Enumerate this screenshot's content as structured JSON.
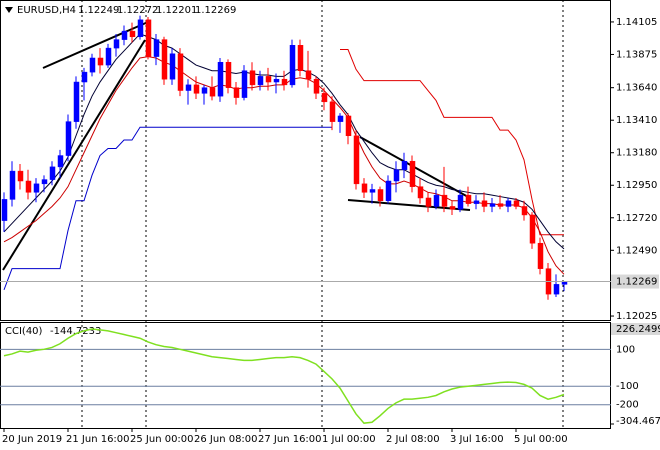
{
  "chart_data": [
    {
      "type": "candlestick",
      "title": "EURUSD,H4",
      "up_color": "#0000ff",
      "down_color": "#ff0000",
      "categories": [
        "20 Jun 2019",
        null,
        null,
        null,
        null,
        null,
        null,
        null,
        "21 Jun 16:00",
        null,
        null,
        null,
        null,
        null,
        null,
        null,
        "25 Jun 00:00",
        null,
        null,
        null,
        null,
        null,
        null,
        null,
        "26 Jun 08:00",
        null,
        null,
        null,
        null,
        null,
        null,
        null,
        "27 Jun 16:00",
        null,
        null,
        null,
        null,
        null,
        null,
        null,
        "1 Jul 00:00",
        null,
        null,
        null,
        null,
        null,
        null,
        null,
        "2 Jul 08:00",
        null,
        null,
        null,
        null,
        null,
        null,
        null,
        "3 Jul 16:00",
        null,
        null,
        null,
        null,
        null,
        null,
        null,
        "5 Jul 00:00",
        null,
        null,
        null,
        null,
        null,
        null
      ],
      "ohlc": [
        [
          1.127,
          1.129,
          1.1262,
          1.1285
        ],
        [
          1.1285,
          1.1312,
          1.128,
          1.1305
        ],
        [
          1.1305,
          1.131,
          1.1292,
          1.1298
        ],
        [
          1.1298,
          1.1306,
          1.1285,
          1.129
        ],
        [
          1.129,
          1.13,
          1.1283,
          1.1296
        ],
        [
          1.1296,
          1.1302,
          1.129,
          1.1299
        ],
        [
          1.1299,
          1.1312,
          1.1295,
          1.1308
        ],
        [
          1.1308,
          1.132,
          1.13,
          1.1316
        ],
        [
          1.1316,
          1.1345,
          1.1312,
          1.134
        ],
        [
          1.134,
          1.1372,
          1.1335,
          1.1368
        ],
        [
          1.1368,
          1.1378,
          1.1355,
          1.1375
        ],
        [
          1.1375,
          1.1388,
          1.1372,
          1.1385
        ],
        [
          1.1385,
          1.1392,
          1.1374,
          1.138
        ],
        [
          1.138,
          1.1395,
          1.1378,
          1.1392
        ],
        [
          1.1392,
          1.1402,
          1.1386,
          1.1398
        ],
        [
          1.1398,
          1.1408,
          1.1394,
          1.1404
        ],
        [
          1.1404,
          1.141,
          1.1396,
          1.14
        ],
        [
          1.14,
          1.1415,
          1.1398,
          1.1412
        ],
        [
          1.1412,
          1.1414,
          1.1384,
          1.1386
        ],
        [
          1.1386,
          1.1402,
          1.138,
          1.1398
        ],
        [
          1.1398,
          1.14,
          1.1366,
          1.137
        ],
        [
          1.137,
          1.1392,
          1.1366,
          1.1388
        ],
        [
          1.1388,
          1.1392,
          1.1358,
          1.1362
        ],
        [
          1.1362,
          1.137,
          1.1352,
          1.1366
        ],
        [
          1.1366,
          1.1372,
          1.1356,
          1.136
        ],
        [
          1.136,
          1.1366,
          1.1352,
          1.1364
        ],
        [
          1.1364,
          1.1372,
          1.1355,
          1.1358
        ],
        [
          1.1358,
          1.1385,
          1.1354,
          1.1382
        ],
        [
          1.1382,
          1.1384,
          1.136,
          1.1364
        ],
        [
          1.1364,
          1.1368,
          1.1352,
          1.1357
        ],
        [
          1.1357,
          1.138,
          1.1355,
          1.1376
        ],
        [
          1.1376,
          1.1382,
          1.1362,
          1.1366
        ],
        [
          1.1366,
          1.1376,
          1.1362,
          1.1372
        ],
        [
          1.1372,
          1.1378,
          1.1362,
          1.1368
        ],
        [
          1.1368,
          1.1374,
          1.136,
          1.137
        ],
        [
          1.137,
          1.1376,
          1.1362,
          1.1366
        ],
        [
          1.1366,
          1.1398,
          1.1364,
          1.1394
        ],
        [
          1.1394,
          1.1398,
          1.1372,
          1.1376
        ],
        [
          1.1376,
          1.139,
          1.1364,
          1.137
        ],
        [
          1.137,
          1.1372,
          1.1356,
          1.136
        ],
        [
          1.136,
          1.1364,
          1.1348,
          1.1354
        ],
        [
          1.1354,
          1.1358,
          1.1334,
          1.134
        ],
        [
          1.134,
          1.1346,
          1.1332,
          1.1344
        ],
        [
          1.1344,
          1.1346,
          1.1324,
          1.133
        ],
        [
          1.133,
          1.1334,
          1.1292,
          1.1296
        ],
        [
          1.1296,
          1.13,
          1.1286,
          1.129
        ],
        [
          1.129,
          1.1296,
          1.1282,
          1.1292
        ],
        [
          1.1292,
          1.1294,
          1.128,
          1.1284
        ],
        [
          1.1284,
          1.1302,
          1.1282,
          1.1298
        ],
        [
          1.1298,
          1.1312,
          1.129,
          1.1306
        ],
        [
          1.1306,
          1.1318,
          1.13,
          1.1312
        ],
        [
          1.1312,
          1.1316,
          1.129,
          1.1294
        ],
        [
          1.1294,
          1.13,
          1.1282,
          1.1286
        ],
        [
          1.1286,
          1.129,
          1.1276,
          1.128
        ],
        [
          1.128,
          1.1292,
          1.1278,
          1.1288
        ],
        [
          1.1288,
          1.1308,
          1.1276,
          1.128
        ],
        [
          1.128,
          1.1284,
          1.1274,
          1.1278
        ],
        [
          1.1278,
          1.1292,
          1.1276,
          1.1288
        ],
        [
          1.1288,
          1.1294,
          1.128,
          1.1282
        ],
        [
          1.1282,
          1.1288,
          1.1278,
          1.1284
        ],
        [
          1.1284,
          1.129,
          1.1276,
          1.128
        ],
        [
          1.128,
          1.1286,
          1.1276,
          1.1282
        ],
        [
          1.1282,
          1.1288,
          1.1278,
          1.128
        ],
        [
          1.128,
          1.1286,
          1.1276,
          1.1284
        ],
        [
          1.1284,
          1.1286,
          1.1278,
          1.128
        ],
        [
          1.128,
          1.1284,
          1.127,
          1.1274
        ],
        [
          1.1274,
          1.1276,
          1.125,
          1.1254
        ],
        [
          1.1254,
          1.1258,
          1.1232,
          1.1236
        ],
        [
          1.1236,
          1.124,
          1.1214,
          1.1218
        ],
        [
          1.1218,
          1.1232,
          1.1216,
          1.12249
        ],
        [
          1.12249,
          1.12272,
          1.12201,
          1.12269
        ]
      ],
      "series": [
        {
          "color": "#0000cc",
          "values": [
            1.1221,
            1.1236,
            1.1236,
            1.1236,
            1.1236,
            1.1236,
            1.1236,
            1.1236,
            1.1263,
            1.1284,
            1.1284,
            1.1302,
            1.1316,
            1.1321,
            1.1321,
            1.1327,
            1.1327,
            1.1336,
            1.1336,
            1.1336,
            1.1336,
            1.1336,
            1.1336,
            1.1336,
            1.1336,
            1.1336,
            1.1336,
            1.1336,
            1.1336,
            1.1336,
            1.1336,
            1.1336,
            1.1336,
            1.1336,
            1.1336,
            1.1336,
            1.1336,
            1.1336,
            1.1336,
            1.1336,
            1.1336,
            1.1336,
            null,
            null,
            null,
            null,
            null,
            null,
            null,
            null,
            null,
            null,
            null,
            null,
            null,
            null,
            null,
            null,
            null,
            null,
            null,
            null,
            null,
            null,
            null,
            null,
            null,
            null,
            null,
            null,
            null
          ]
        },
        {
          "color": "#e00000",
          "values": [
            null,
            null,
            null,
            null,
            null,
            null,
            null,
            null,
            null,
            null,
            null,
            null,
            null,
            null,
            null,
            null,
            null,
            null,
            null,
            null,
            null,
            null,
            null,
            null,
            null,
            null,
            null,
            null,
            null,
            null,
            null,
            null,
            null,
            null,
            null,
            null,
            null,
            null,
            null,
            null,
            null,
            null,
            1.1391,
            1.1391,
            1.1377,
            1.1369,
            1.1369,
            1.1369,
            1.1369,
            1.1369,
            1.1369,
            1.1369,
            1.1369,
            1.1362,
            1.1355,
            1.1343,
            1.1343,
            1.1343,
            1.1343,
            1.1343,
            1.1343,
            1.1343,
            1.1334,
            1.1334,
            1.1327,
            1.1313,
            1.1285,
            1.126,
            1.126,
            1.126,
            1.126
          ]
        },
        {
          "color": "#000033",
          "values": [
            1.1262,
            1.1268,
            1.1274,
            1.128,
            1.1286,
            1.1292,
            1.1298,
            1.1305,
            1.1315,
            1.133,
            1.1345,
            1.1358,
            1.1368,
            1.1376,
            1.1384,
            1.139,
            1.1396,
            1.1402,
            1.14,
            1.1398,
            1.1394,
            1.1392,
            1.1388,
            1.1384,
            1.138,
            1.1378,
            1.1376,
            1.1376,
            1.1375,
            1.1374,
            1.1375,
            1.1374,
            1.1373,
            1.1373,
            1.1372,
            1.1372,
            1.1376,
            1.1377,
            1.1375,
            1.1372,
            1.1367,
            1.136,
            1.1352,
            1.1345,
            1.1334,
            1.1326,
            1.1318,
            1.1311,
            1.1308,
            1.1306,
            1.1306,
            1.1303,
            1.13,
            1.1297,
            1.1295,
            1.1294,
            1.1292,
            1.1291,
            1.129,
            1.1289,
            1.1289,
            1.1288,
            1.1287,
            1.1286,
            1.1285,
            1.1283,
            1.1278,
            1.127,
            1.1262,
            1.1255,
            1.125
          ]
        },
        {
          "color": "#cc0000",
          "values": [
            1.1255,
            1.1258,
            1.1262,
            1.1266,
            1.127,
            1.1275,
            1.128,
            1.1286,
            1.1294,
            1.1306,
            1.1318,
            1.133,
            1.1342,
            1.1352,
            1.1362,
            1.137,
            1.1378,
            1.1385,
            1.1386,
            1.1385,
            1.1382,
            1.138,
            1.1376,
            1.1372,
            1.1368,
            1.1366,
            1.1364,
            1.1366,
            1.1365,
            1.1363,
            1.1364,
            1.1364,
            1.1365,
            1.1365,
            1.1366,
            1.1366,
            1.137,
            1.1371,
            1.137,
            1.1367,
            1.1362,
            1.1356,
            1.135,
            1.1343,
            1.133,
            1.1318,
            1.1308,
            1.13,
            1.1296,
            1.1296,
            1.1298,
            1.1296,
            1.1293,
            1.129,
            1.1289,
            1.1287,
            1.1284,
            1.1284,
            1.1283,
            1.1283,
            1.1282,
            1.1282,
            1.1281,
            1.1281,
            1.1281,
            1.1279,
            1.1272,
            1.1262,
            1.1248,
            1.1238,
            1.1232
          ]
        }
      ],
      "ylim": [
        1.11997,
        1.14246
      ],
      "yticks": [
        1.14105,
        1.13875,
        {
          "value": 1.1364,
          "label": "1.13640"
        },
        {
          "value": 1.1341,
          "label": "1.13410"
        },
        {
          "value": 1.1318,
          "label": "1.13180"
        },
        {
          "value": 1.1295,
          "label": "1.12950"
        },
        {
          "value": 1.1272,
          "label": "1.12720"
        },
        {
          "value": 1.1249,
          "label": "1.12490"
        },
        1.12025
      ]
    },
    {
      "type": "line",
      "title": "CCI(40)",
      "series": [
        {
          "color": "#7fe020",
          "values": [
            65,
            75,
            90,
            85,
            95,
            100,
            110,
            130,
            160,
            185,
            200,
            210,
            205,
            200,
            190,
            180,
            170,
            160,
            140,
            125,
            115,
            110,
            100,
            90,
            80,
            70,
            60,
            55,
            50,
            45,
            40,
            40,
            45,
            50,
            55,
            55,
            60,
            55,
            40,
            20,
            -20,
            -60,
            -110,
            -180,
            -250,
            -300,
            -295,
            -260,
            -220,
            -190,
            -170,
            -170,
            -165,
            -160,
            -150,
            -130,
            -115,
            -105,
            -100,
            -95,
            -90,
            -85,
            -80,
            -78,
            -80,
            -90,
            -110,
            -150,
            -170,
            -160,
            -144.7233
          ]
        }
      ],
      "ylim": [
        -304.4671,
        226.2499
      ],
      "yticks": [
        226.2499,
        100,
        -100,
        -200,
        -304.4671
      ]
    }
  ]
}
